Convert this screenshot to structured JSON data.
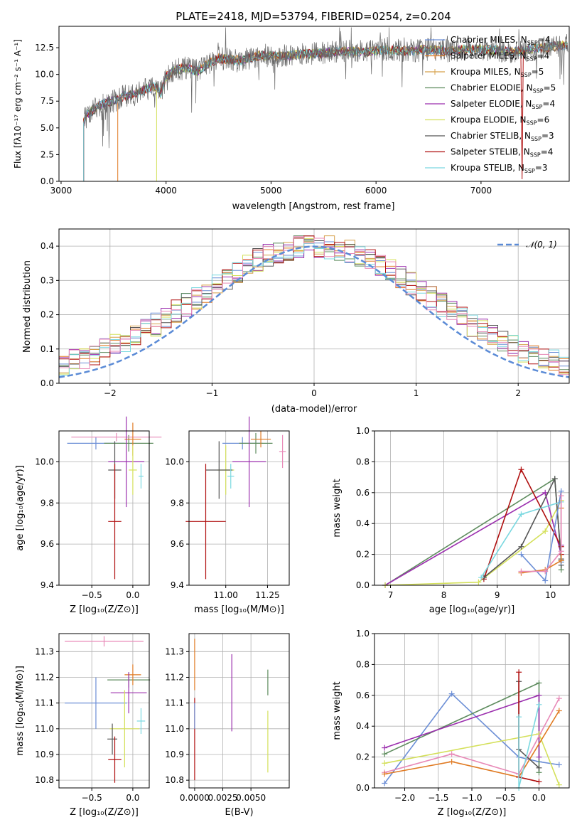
{
  "colors": {
    "chabrier_miles": "#6c8fd6",
    "salpeter_miles": "#e07b24",
    "kroupa_miles": "#d6a04a",
    "chabrier_elodie": "#5e8c5e",
    "salpeter_elodie": "#9b2fae",
    "kroupa_elodie": "#d4e05a",
    "chabrier_stelib": "#555555",
    "salpeter_stelib": "#b01010",
    "kroupa_stelib": "#7ad8e0",
    "pink": "#e88ab8",
    "gauss": "#5b8bd6"
  },
  "chart_data": [
    {
      "type": "line",
      "title": "PLATE=2418, MJD=53794, FIBERID=0254, z=0.204",
      "xlabel": "wavelength [Angstrom, rest frame]",
      "ylabel": "Flux [fλ10⁻¹⁷ erg cm⁻² s⁻¹ A⁻¹]",
      "xlim": [
        2980,
        7840
      ],
      "ylim": [
        0,
        14.5
      ],
      "xticks": [
        "3000",
        "4000",
        "5000",
        "6000",
        "7000"
      ],
      "yticks": [
        "0.0",
        "2.5",
        "5.0",
        "7.5",
        "10.0",
        "12.5"
      ],
      "xtick_values": [
        3000,
        4000,
        5000,
        6000,
        7000
      ],
      "ytick_values": [
        0,
        2.5,
        5,
        7.5,
        10,
        12.5
      ],
      "legend_placement": "right",
      "legend": [
        {
          "label": "Chabrier MILES, N",
          "sub": "SSP",
          "suffix": "=4",
          "color": "#6c8fd6"
        },
        {
          "label": "Salpeter MILES, N",
          "sub": "SSP",
          "suffix": "=4",
          "color": "#e07b24"
        },
        {
          "label": "Kroupa MILES, N",
          "sub": "SSP",
          "suffix": "=5",
          "color": "#d6a04a"
        },
        {
          "label": "Chabrier ELODIE, N",
          "sub": "SSP",
          "suffix": "=5",
          "color": "#5e8c5e"
        },
        {
          "label": "Salpeter ELODIE, N",
          "sub": "SSP",
          "suffix": "=4",
          "color": "#9b2fae"
        },
        {
          "label": "Kroupa ELODIE, N",
          "sub": "SSP",
          "suffix": "=6",
          "color": "#d4e05a"
        },
        {
          "label": "Chabrier STELIB, N",
          "sub": "SSP",
          "suffix": "=3",
          "color": "#555555"
        },
        {
          "label": "Salpeter STELIB, N",
          "sub": "SSP",
          "suffix": "=4",
          "color": "#b01010"
        },
        {
          "label": "Kroupa STELIB, N",
          "sub": "SSP",
          "suffix": "=3",
          "color": "#7ad8e0"
        }
      ],
      "model_continuum": {
        "x": [
          3215,
          3250,
          3300,
          3400,
          3500,
          3600,
          3700,
          3800,
          3900,
          3950,
          4000,
          4100,
          4200,
          4300,
          4400,
          4500,
          4700,
          4900,
          5100,
          5300,
          5500,
          5700,
          5900,
          6100,
          6300,
          6500,
          6700,
          6900,
          7100,
          7300,
          7500,
          7700,
          7830
        ],
        "y": [
          5.5,
          6.3,
          6.6,
          7.3,
          7.5,
          8.0,
          8.1,
          8.6,
          8.9,
          8.2,
          9.8,
          10.5,
          10.6,
          10.3,
          11.0,
          11.5,
          11.3,
          11.8,
          11.7,
          11.9,
          12.0,
          12.2,
          12.1,
          12.3,
          12.2,
          12.3,
          12.2,
          12.4,
          12.3,
          12.1,
          12.4,
          12.6,
          12.7
        ]
      },
      "model_start_wavelength": {
        "kroupa_stelib": 3215,
        "salpeter_miles": 3540,
        "kroupa_elodie": 3910
      }
    },
    {
      "type": "histogram",
      "xlabel": "(data-model)/error",
      "ylabel": "Normed distribution",
      "xlim": [
        -2.5,
        2.5
      ],
      "ylim": [
        0,
        0.45
      ],
      "xticks": [
        "−2",
        "−1",
        "0",
        "1",
        "2"
      ],
      "yticks": [
        "0.0",
        "0.1",
        "0.2",
        "0.3",
        "0.4"
      ],
      "xtick_values": [
        -2,
        -1,
        0,
        1,
        2
      ],
      "ytick_values": [
        0,
        0.1,
        0.2,
        0.3,
        0.4
      ],
      "bin_width": 0.1,
      "gaussian_label": "𝒩(0, 1)",
      "legend_placement": "top-right",
      "grid": true
    },
    {
      "type": "errorbar",
      "xlabel": "Z [log₁₀(Z/Z⊙)]",
      "ylabel": "age  [log₁₀(age/yr)]",
      "xlim": [
        -0.9,
        0.2
      ],
      "ylim": [
        9.4,
        10.15
      ],
      "xticks": [
        "−0.5",
        "0.0"
      ],
      "xtick_values": [
        -0.5,
        0.0
      ],
      "yticks": [
        "9.4",
        "9.6",
        "9.8",
        "10.0"
      ],
      "ytick_values": [
        9.4,
        9.6,
        9.8,
        10.0
      ],
      "points": [
        {
          "x": -0.45,
          "xerr": 0.35,
          "y": 10.09,
          "yerr": 0.03,
          "color": "#6c8fd6"
        },
        {
          "x": -0.05,
          "xerr": 0.3,
          "y": 10.09,
          "yerr": 0.04,
          "color": "#5e8c5e"
        },
        {
          "x": -0.2,
          "xerr": 0.55,
          "y": 10.12,
          "yerr": 0.02,
          "color": "#e88ab8"
        },
        {
          "x": 0.0,
          "xerr": 0.1,
          "y": 10.11,
          "yerr": 0.08,
          "color": "#e07b24"
        },
        {
          "x": -0.08,
          "xerr": 0.22,
          "y": 10.0,
          "yerr": 0.22,
          "color": "#9b2fae"
        },
        {
          "x": 0.0,
          "xerr": 0.05,
          "y": 9.96,
          "yerr": 0.12,
          "color": "#d4e05a"
        },
        {
          "x": -0.22,
          "xerr": 0.08,
          "y": 9.96,
          "yerr": 0.14,
          "color": "#555555"
        },
        {
          "x": -0.22,
          "xerr": 0.08,
          "y": 9.71,
          "yerr": 0.28,
          "color": "#b01010"
        },
        {
          "x": 0.1,
          "xerr": 0.03,
          "y": 9.93,
          "yerr": 0.06,
          "color": "#7ad8e0"
        }
      ]
    },
    {
      "type": "errorbar",
      "xlabel": "mass [log₁₀(M/M⊙)]",
      "ylabel": "",
      "xlim": [
        10.78,
        11.38
      ],
      "ylim": [
        9.4,
        10.15
      ],
      "xticks": [
        "11.00",
        "11.25"
      ],
      "xtick_values": [
        11.0,
        11.25
      ],
      "yticks": [
        "9.4",
        "9.6",
        "9.8",
        "10.0"
      ],
      "ytick_values": [
        9.4,
        9.6,
        9.8,
        10.0
      ],
      "points": [
        {
          "x": 11.1,
          "xerr": 0.12,
          "y": 10.09,
          "yerr": 0.03,
          "color": "#6c8fd6"
        },
        {
          "x": 11.18,
          "xerr": 0.1,
          "y": 10.09,
          "yerr": 0.05,
          "color": "#5e8c5e"
        },
        {
          "x": 11.34,
          "xerr": 0.02,
          "y": 10.05,
          "yerr": 0.08,
          "color": "#e88ab8"
        },
        {
          "x": 11.21,
          "xerr": 0.06,
          "y": 10.11,
          "yerr": 0.04,
          "color": "#e07b24"
        },
        {
          "x": 11.14,
          "xerr": 0.1,
          "y": 10.0,
          "yerr": 0.22,
          "color": "#9b2fae"
        },
        {
          "x": 11.0,
          "xerr": 0.05,
          "y": 9.96,
          "yerr": 0.12,
          "color": "#d4e05a"
        },
        {
          "x": 10.96,
          "xerr": 0.08,
          "y": 9.96,
          "yerr": 0.14,
          "color": "#555555"
        },
        {
          "x": 10.88,
          "xerr": 0.12,
          "y": 9.71,
          "yerr": 0.28,
          "color": "#b01010"
        },
        {
          "x": 11.03,
          "xerr": 0.02,
          "y": 9.93,
          "yerr": 0.06,
          "color": "#7ad8e0"
        }
      ]
    },
    {
      "type": "line",
      "xlabel": "age  [log₁₀(age/yr)]",
      "ylabel": "mass weight",
      "xlim": [
        6.7,
        10.35
      ],
      "ylim": [
        0,
        1.0
      ],
      "xticks": [
        "7",
        "8",
        "9",
        "10"
      ],
      "xtick_values": [
        7,
        8,
        9,
        10
      ],
      "yticks": [
        "0.0",
        "0.2",
        "0.4",
        "0.6",
        "0.8",
        "1.0"
      ],
      "ytick_values": [
        0,
        0.2,
        0.4,
        0.6,
        0.8,
        1.0
      ],
      "grid": true,
      "series": [
        {
          "color": "#5e8c5e",
          "x": [
            6.9,
            10.08,
            10.2,
            10.2
          ],
          "y": [
            0.0,
            0.69,
            0.16,
            0.1
          ]
        },
        {
          "color": "#9b2fae",
          "x": [
            6.9,
            9.9,
            10.2,
            10.2
          ],
          "y": [
            0.0,
            0.6,
            0.2,
            0.26
          ]
        },
        {
          "color": "#d4e05a",
          "x": [
            6.9,
            8.65,
            9.9,
            10.2
          ],
          "y": [
            0.0,
            0.02,
            0.35,
            0.55
          ]
        },
        {
          "color": "#b01010",
          "x": [
            8.75,
            9.45,
            10.2,
            10.2
          ],
          "y": [
            0.04,
            0.75,
            0.25,
            0.2
          ]
        },
        {
          "color": "#555555",
          "x": [
            8.75,
            9.45,
            10.08,
            10.2,
            10.2
          ],
          "y": [
            0.05,
            0.25,
            0.69,
            0.17,
            0.13
          ]
        },
        {
          "color": "#7ad8e0",
          "x": [
            8.7,
            9.45,
            10.2,
            10.2
          ],
          "y": [
            0.05,
            0.46,
            0.54,
            0.15
          ]
        },
        {
          "color": "#6c8fd6",
          "x": [
            9.45,
            9.9,
            10.2,
            10.2
          ],
          "y": [
            0.2,
            0.03,
            0.61,
            0.15
          ]
        },
        {
          "color": "#e07b24",
          "x": [
            9.45,
            9.9,
            10.2,
            10.2
          ],
          "y": [
            0.08,
            0.1,
            0.16,
            0.5
          ]
        },
        {
          "color": "#e88ab8",
          "x": [
            9.45,
            9.9,
            10.2,
            10.2
          ],
          "y": [
            0.09,
            0.09,
            0.22,
            0.58
          ]
        }
      ]
    },
    {
      "type": "errorbar",
      "xlabel": "Z [log₁₀(Z/Z⊙)]",
      "ylabel": "mass [log₁₀(M/M⊙)]",
      "xlim": [
        -0.9,
        0.2
      ],
      "ylim": [
        10.77,
        11.37
      ],
      "xticks": [
        "−0.5",
        "0.0"
      ],
      "xtick_values": [
        -0.5,
        0.0
      ],
      "yticks": [
        "10.8",
        "10.9",
        "11.0",
        "11.1",
        "11.2",
        "11.3"
      ],
      "ytick_values": [
        10.8,
        10.9,
        11.0,
        11.1,
        11.2,
        11.3
      ],
      "points": [
        {
          "x": -0.45,
          "xerr": 0.38,
          "y": 11.1,
          "yerr": 0.1,
          "color": "#6c8fd6"
        },
        {
          "x": -0.05,
          "xerr": 0.26,
          "y": 11.19,
          "yerr": 0.03,
          "color": "#5e8c5e"
        },
        {
          "x": -0.35,
          "xerr": 0.48,
          "y": 11.34,
          "yerr": 0.02,
          "color": "#e88ab8"
        },
        {
          "x": 0.0,
          "xerr": 0.1,
          "y": 11.21,
          "yerr": 0.04,
          "color": "#e07b24"
        },
        {
          "x": -0.05,
          "xerr": 0.22,
          "y": 11.14,
          "yerr": 0.08,
          "color": "#9b2fae"
        },
        {
          "x": -0.1,
          "xerr": 0.18,
          "y": 11.0,
          "yerr": 0.15,
          "color": "#d4e05a"
        },
        {
          "x": -0.25,
          "xerr": 0.06,
          "y": 10.96,
          "yerr": 0.06,
          "color": "#555555"
        },
        {
          "x": -0.22,
          "xerr": 0.08,
          "y": 10.88,
          "yerr": 0.09,
          "color": "#b01010"
        },
        {
          "x": 0.1,
          "xerr": 0.05,
          "y": 11.03,
          "yerr": 0.05,
          "color": "#7ad8e0"
        }
      ]
    },
    {
      "type": "errorbar",
      "xlabel": "E(B-V)",
      "ylabel": "",
      "xlim": [
        -0.0005,
        0.0084
      ],
      "ylim": [
        10.77,
        11.37
      ],
      "xticks": [
        "0.0000",
        "0.0025",
        "0.0050"
      ],
      "xtick_values": [
        0.0,
        0.0025,
        0.005
      ],
      "yticks": [
        "10.8",
        "10.9",
        "11.0",
        "11.1",
        "11.2",
        "11.3"
      ],
      "ytick_values": [
        10.8,
        10.9,
        11.0,
        11.1,
        11.2,
        11.3
      ],
      "points": [
        {
          "x": 0.0,
          "xerr": 0.0,
          "y": 10.96,
          "yerr": 0.16,
          "color": "#b01010"
        },
        {
          "x": 0.0,
          "xerr": 0.0,
          "y": 11.25,
          "yerr": 0.1,
          "color": "#e07b24"
        },
        {
          "x": 0.0,
          "xerr": 0.0,
          "y": 11.05,
          "yerr": 0.05,
          "color": "#6c8fd6"
        },
        {
          "x": 0.0033,
          "xerr": 0.0,
          "y": 11.14,
          "yerr": 0.15,
          "color": "#9b2fae"
        },
        {
          "x": 0.0065,
          "xerr": 0.0,
          "y": 11.18,
          "yerr": 0.05,
          "color": "#5e8c5e"
        },
        {
          "x": 0.0065,
          "xerr": 0.0,
          "y": 10.95,
          "yerr": 0.12,
          "color": "#d4e05a"
        }
      ]
    },
    {
      "type": "line",
      "xlabel": "Z [log₁₀(Z/Z⊙)]",
      "ylabel": "mass weight",
      "xlim": [
        -2.45,
        0.45
      ],
      "ylim": [
        0,
        1.0
      ],
      "xticks": [
        "−2.0",
        "−1.5",
        "−1.0",
        "−0.5",
        "0.0"
      ],
      "xtick_values": [
        -2.0,
        -1.5,
        -1.0,
        -0.5,
        0.0
      ],
      "yticks": [
        "0.0",
        "0.2",
        "0.4",
        "0.6",
        "0.8",
        "1.0"
      ],
      "ytick_values": [
        0,
        0.2,
        0.4,
        0.6,
        0.8,
        1.0
      ],
      "grid": true,
      "series": [
        {
          "color": "#6c8fd6",
          "x": [
            -2.3,
            -1.3,
            -0.3,
            0.0,
            0.3
          ],
          "y": [
            0.03,
            0.61,
            0.2,
            0.17,
            0.15
          ]
        },
        {
          "color": "#5e8c5e",
          "x": [
            -2.3,
            0.0,
            0.0
          ],
          "y": [
            0.22,
            0.68,
            0.1
          ]
        },
        {
          "color": "#9b2fae",
          "x": [
            -2.3,
            0.0,
            0.0
          ],
          "y": [
            0.26,
            0.6,
            0.2
          ]
        },
        {
          "color": "#d4e05a",
          "x": [
            -2.3,
            0.0,
            0.3
          ],
          "y": [
            0.16,
            0.35,
            0.02
          ]
        },
        {
          "color": "#e88ab8",
          "x": [
            -2.3,
            -1.3,
            -0.3,
            0.3
          ],
          "y": [
            0.1,
            0.22,
            0.09,
            0.58
          ]
        },
        {
          "color": "#e07b24",
          "x": [
            -2.3,
            -1.3,
            -0.3,
            0.3
          ],
          "y": [
            0.09,
            0.17,
            0.07,
            0.5
          ]
        },
        {
          "color": "#555555",
          "x": [
            -0.3,
            -0.3,
            0.0
          ],
          "y": [
            0.69,
            0.25,
            0.13
          ]
        },
        {
          "color": "#b01010",
          "x": [
            -0.3,
            -0.3,
            0.0
          ],
          "y": [
            0.75,
            0.07,
            0.04
          ]
        },
        {
          "color": "#7ad8e0",
          "x": [
            -0.3,
            -0.3,
            0.0
          ],
          "y": [
            0.46,
            0.0,
            0.54
          ]
        }
      ]
    }
  ]
}
